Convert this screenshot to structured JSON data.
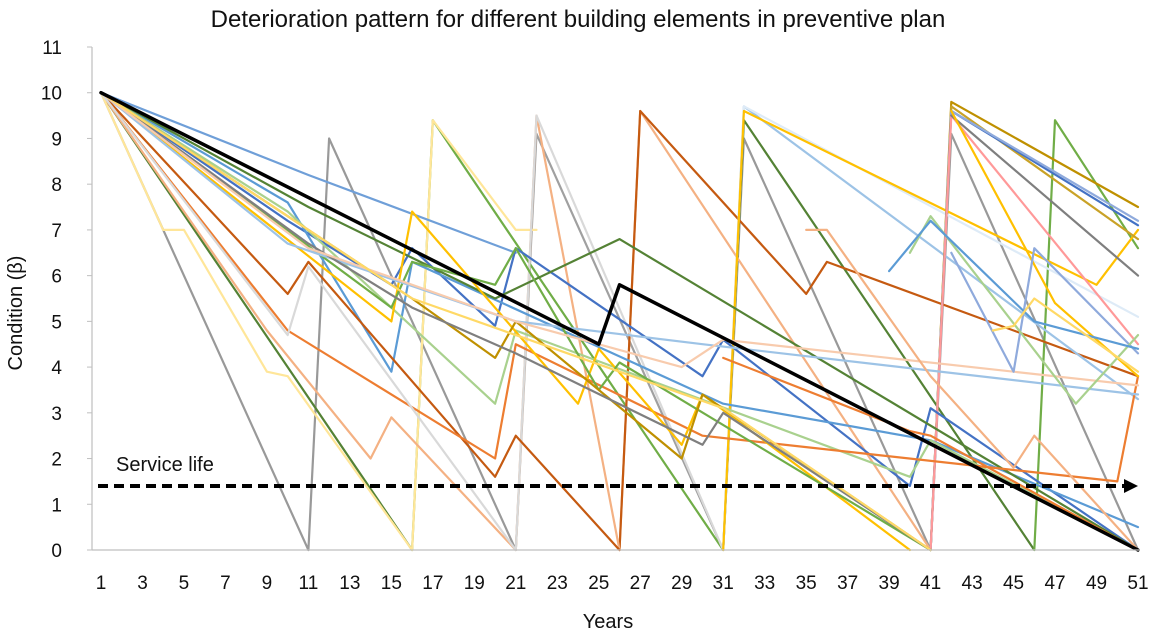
{
  "chart_data": {
    "type": "line",
    "title": "Deterioration pattern for different building elements in preventive plan",
    "xlabel": "Years",
    "ylabel": "Condition (β)",
    "xlim": [
      1,
      51
    ],
    "ylim": [
      0,
      11
    ],
    "x_ticks": [
      "1",
      "3",
      "5",
      "7",
      "9",
      "11",
      "13",
      "15",
      "17",
      "19",
      "21",
      "23",
      "25",
      "27",
      "29",
      "31",
      "33",
      "35",
      "37",
      "39",
      "41",
      "43",
      "45",
      "47",
      "49",
      "51"
    ],
    "y_ticks": [
      "0",
      "1",
      "2",
      "3",
      "4",
      "5",
      "6",
      "7",
      "8",
      "9",
      "10",
      "11"
    ],
    "grid": false,
    "legend": "none",
    "annotations": [
      {
        "text": "Service life",
        "y": 1.4
      }
    ],
    "series": [
      {
        "color": "#000000",
        "width": 3.5,
        "points": [
          [
            1,
            10
          ],
          [
            25,
            4.5
          ],
          [
            26,
            5.8
          ],
          [
            51,
            0
          ]
        ]
      },
      {
        "color": "#999999",
        "width": 2.2,
        "points": [
          [
            1,
            10
          ],
          [
            11,
            0
          ]
        ]
      },
      {
        "color": "#999999",
        "width": 2.2,
        "points": [
          [
            11,
            0
          ],
          [
            12,
            9
          ],
          [
            21,
            0
          ]
        ]
      },
      {
        "color": "#A0A0A0",
        "width": 2.2,
        "points": [
          [
            21,
            0
          ],
          [
            22,
            9.1
          ],
          [
            31,
            0
          ]
        ]
      },
      {
        "color": "#999999",
        "width": 2.2,
        "points": [
          [
            31,
            0
          ],
          [
            32,
            9
          ],
          [
            41,
            0
          ]
        ]
      },
      {
        "color": "#999999",
        "width": 2.2,
        "points": [
          [
            41,
            0
          ],
          [
            42,
            9.1
          ],
          [
            51,
            0
          ]
        ]
      },
      {
        "color": "#548235",
        "width": 2.2,
        "points": [
          [
            1,
            10
          ],
          [
            16,
            0
          ]
        ]
      },
      {
        "color": "#70AD47",
        "width": 2.2,
        "points": [
          [
            16,
            0
          ],
          [
            17,
            9.4
          ],
          [
            31,
            0
          ]
        ]
      },
      {
        "color": "#548235",
        "width": 2.2,
        "points": [
          [
            31,
            0
          ],
          [
            32,
            9.4
          ],
          [
            46,
            0
          ]
        ]
      },
      {
        "color": "#70AD47",
        "width": 2.2,
        "points": [
          [
            46,
            0
          ],
          [
            47,
            9.4
          ],
          [
            51,
            6.6
          ]
        ]
      },
      {
        "color": "#FFE699",
        "width": 2.2,
        "points": [
          [
            16,
            0
          ],
          [
            17,
            9.4
          ],
          [
            21,
            7
          ],
          [
            22,
            7
          ]
        ]
      },
      {
        "color": "#F4B183",
        "width": 2.2,
        "points": [
          [
            26,
            0
          ],
          [
            27,
            9.6
          ],
          [
            41,
            0
          ]
        ]
      },
      {
        "color": "#C55A11",
        "width": 2.2,
        "points": [
          [
            26,
            0
          ],
          [
            27,
            9.6
          ],
          [
            35,
            5.6
          ],
          [
            36,
            6.3
          ],
          [
            51,
            3.8
          ]
        ]
      },
      {
        "color": "#F4B183",
        "width": 2.2,
        "points": [
          [
            21,
            0
          ],
          [
            22,
            9.5
          ],
          [
            26,
            0
          ]
        ]
      },
      {
        "color": "#D9D9D9",
        "width": 2.2,
        "points": [
          [
            21,
            0
          ],
          [
            22,
            9.5
          ],
          [
            31,
            0
          ]
        ]
      },
      {
        "color": "#9DC3E6",
        "width": 2.2,
        "points": [
          [
            31,
            0
          ],
          [
            32,
            9.7
          ],
          [
            51,
            3.3
          ]
        ]
      },
      {
        "color": "#DEEBF7",
        "width": 2.2,
        "points": [
          [
            31,
            0
          ],
          [
            32,
            9.7
          ],
          [
            51,
            5.1
          ]
        ]
      },
      {
        "color": "#FFC000",
        "width": 2.2,
        "points": [
          [
            31,
            0
          ],
          [
            32,
            9.6
          ],
          [
            49,
            5.8
          ],
          [
            51,
            7
          ]
        ]
      },
      {
        "color": "#BF9000",
        "width": 2.2,
        "points": [
          [
            41,
            0
          ],
          [
            42,
            9.8
          ],
          [
            51,
            7.5
          ]
        ]
      },
      {
        "color": "#C9A227",
        "width": 2.2,
        "points": [
          [
            41,
            0
          ],
          [
            42,
            9.7
          ],
          [
            51,
            6.8
          ]
        ]
      },
      {
        "color": "#4472C4",
        "width": 2.2,
        "points": [
          [
            41,
            0
          ],
          [
            42,
            9.6
          ],
          [
            51,
            7.1
          ]
        ]
      },
      {
        "color": "#8FAADC",
        "width": 2.2,
        "points": [
          [
            41,
            0
          ],
          [
            42,
            9.6
          ],
          [
            51,
            7.2
          ]
        ]
      },
      {
        "color": "#FF9999",
        "width": 2.2,
        "points": [
          [
            41,
            0
          ],
          [
            42,
            9.5
          ],
          [
            51,
            4.5
          ]
        ]
      },
      {
        "color": "#7F7F7F",
        "width": 2.2,
        "points": [
          [
            42,
            9.5
          ],
          [
            51,
            6
          ]
        ]
      },
      {
        "color": "#6F9FD8",
        "width": 2.2,
        "points": [
          [
            1,
            10
          ],
          [
            11,
            8.2
          ],
          [
            21,
            6.5
          ]
        ]
      },
      {
        "color": "#4472C4",
        "width": 2.2,
        "points": [
          [
            1,
            10
          ],
          [
            10,
            7.2
          ],
          [
            15,
            5.8
          ],
          [
            16,
            6.6
          ],
          [
            20,
            4.9
          ],
          [
            21,
            6.6
          ],
          [
            30,
            3.8
          ],
          [
            31,
            4.6
          ],
          [
            40,
            1.4
          ],
          [
            41,
            3.1
          ],
          [
            51,
            0
          ]
        ]
      },
      {
        "color": "#5B9BD5",
        "width": 2.2,
        "points": [
          [
            1,
            10
          ],
          [
            10,
            7.6
          ],
          [
            15,
            3.9
          ],
          [
            16,
            6.3
          ],
          [
            31,
            3.2
          ],
          [
            41,
            2.4
          ],
          [
            51,
            0.5
          ]
        ]
      },
      {
        "color": "#A9D18E",
        "width": 2.2,
        "points": [
          [
            1,
            10
          ],
          [
            10,
            7.4
          ],
          [
            20,
            3.2
          ],
          [
            21,
            4.8
          ],
          [
            40,
            1.6
          ],
          [
            41,
            2.4
          ],
          [
            51,
            0
          ]
        ]
      },
      {
        "color": "#548235",
        "width": 2.2,
        "points": [
          [
            1,
            10
          ],
          [
            11,
            7.5
          ],
          [
            20,
            5.5
          ],
          [
            26,
            6.8
          ],
          [
            51,
            0
          ]
        ]
      },
      {
        "color": "#C55A11",
        "width": 2.2,
        "points": [
          [
            1,
            10
          ],
          [
            10,
            5.6
          ],
          [
            11,
            6.3
          ],
          [
            20,
            1.6
          ],
          [
            21,
            2.5
          ],
          [
            26,
            0
          ]
        ]
      },
      {
        "color": "#ED7D31",
        "width": 2.2,
        "points": [
          [
            1,
            10
          ],
          [
            10,
            4.8
          ],
          [
            20,
            2
          ],
          [
            21,
            4.5
          ],
          [
            30,
            2.5
          ],
          [
            50,
            1.5
          ],
          [
            51,
            3.8
          ]
        ]
      },
      {
        "color": "#F4B183",
        "width": 2.2,
        "points": [
          [
            1,
            10
          ],
          [
            9,
            4.8
          ],
          [
            14,
            2
          ],
          [
            15,
            2.9
          ],
          [
            21,
            0
          ]
        ]
      },
      {
        "color": "#FFC000",
        "width": 2.2,
        "points": [
          [
            1,
            10
          ],
          [
            15,
            5
          ],
          [
            16,
            7.4
          ],
          [
            24,
            3.2
          ],
          [
            25,
            4.4
          ],
          [
            29,
            2.3
          ],
          [
            30,
            3.4
          ],
          [
            40,
            0
          ]
        ]
      },
      {
        "color": "#FFE699",
        "width": 2.2,
        "points": [
          [
            1,
            10
          ],
          [
            4,
            7
          ],
          [
            5,
            7
          ],
          [
            9,
            3.9
          ],
          [
            10,
            3.8
          ],
          [
            16,
            0
          ]
        ]
      },
      {
        "color": "#70AD47",
        "width": 2.2,
        "points": [
          [
            1,
            10
          ],
          [
            15,
            5.3
          ],
          [
            16,
            6.3
          ],
          [
            20,
            5.8
          ],
          [
            21,
            6.6
          ],
          [
            25,
            3.5
          ],
          [
            26,
            4.1
          ],
          [
            41,
            0
          ]
        ]
      },
      {
        "color": "#BF9000",
        "width": 2.2,
        "points": [
          [
            1,
            10
          ],
          [
            16,
            5.5
          ],
          [
            20,
            4.2
          ],
          [
            21,
            5
          ],
          [
            29,
            2
          ],
          [
            30,
            3.4
          ],
          [
            41,
            0
          ]
        ]
      },
      {
        "color": "#9DC3E6",
        "width": 2.2,
        "points": [
          [
            1,
            10
          ],
          [
            10,
            6.7
          ],
          [
            21,
            5
          ],
          [
            30,
            4.5
          ],
          [
            51,
            3.4
          ]
        ]
      },
      {
        "color": "#7F7F7F",
        "width": 2.2,
        "points": [
          [
            1,
            10
          ],
          [
            11,
            6.7
          ],
          [
            16,
            5.3
          ],
          [
            21,
            4.3
          ],
          [
            30,
            2.3
          ],
          [
            31,
            3
          ],
          [
            41,
            0
          ]
        ]
      },
      {
        "color": "#D9D9D9",
        "width": 2.2,
        "points": [
          [
            1,
            10
          ],
          [
            10,
            4.7
          ],
          [
            11,
            6.2
          ],
          [
            21,
            0
          ]
        ]
      },
      {
        "color": "#F8CBAD",
        "width": 2.2,
        "points": [
          [
            1,
            10
          ],
          [
            11,
            6.6
          ],
          [
            21,
            5
          ],
          [
            29,
            4
          ],
          [
            31,
            4.6
          ],
          [
            51,
            3.6
          ]
        ]
      },
      {
        "color": "#FFD966",
        "width": 2.2,
        "points": [
          [
            1,
            10
          ],
          [
            16,
            5.5
          ],
          [
            26,
            3.9
          ],
          [
            31,
            3.1
          ],
          [
            41,
            0
          ]
        ]
      },
      {
        "color": "#FFC000",
        "width": 2.2,
        "points": [
          [
            42,
            9.6
          ],
          [
            47,
            5.4
          ],
          [
            51,
            3.8
          ]
        ]
      },
      {
        "color": "#8FAADC",
        "width": 2.2,
        "points": [
          [
            42,
            6.5
          ],
          [
            45,
            3.9
          ],
          [
            46,
            6.6
          ],
          [
            51,
            4.3
          ]
        ]
      },
      {
        "color": "#A9D18E",
        "width": 2.2,
        "points": [
          [
            40,
            6.5
          ],
          [
            41,
            7.3
          ],
          [
            48,
            3.2
          ],
          [
            51,
            4.7
          ]
        ]
      },
      {
        "color": "#5B9BD5",
        "width": 2.2,
        "points": [
          [
            39,
            6.1
          ],
          [
            41,
            7.2
          ],
          [
            46,
            5
          ],
          [
            51,
            4.4
          ]
        ]
      },
      {
        "color": "#F4B183",
        "width": 2.2,
        "points": [
          [
            35,
            7
          ],
          [
            36,
            7
          ],
          [
            41,
            3.8
          ],
          [
            45,
            1.8
          ],
          [
            46,
            2.5
          ],
          [
            51,
            0
          ]
        ]
      },
      {
        "color": "#ED7D31",
        "width": 2.2,
        "points": [
          [
            31,
            4.2
          ],
          [
            40,
            2.6
          ],
          [
            41,
            2.5
          ],
          [
            51,
            0
          ]
        ]
      },
      {
        "color": "#FFD966",
        "width": 2.2,
        "points": [
          [
            44,
            4.8
          ],
          [
            45,
            4.9
          ],
          [
            46,
            5.5
          ],
          [
            51,
            3.9
          ]
        ]
      }
    ]
  }
}
